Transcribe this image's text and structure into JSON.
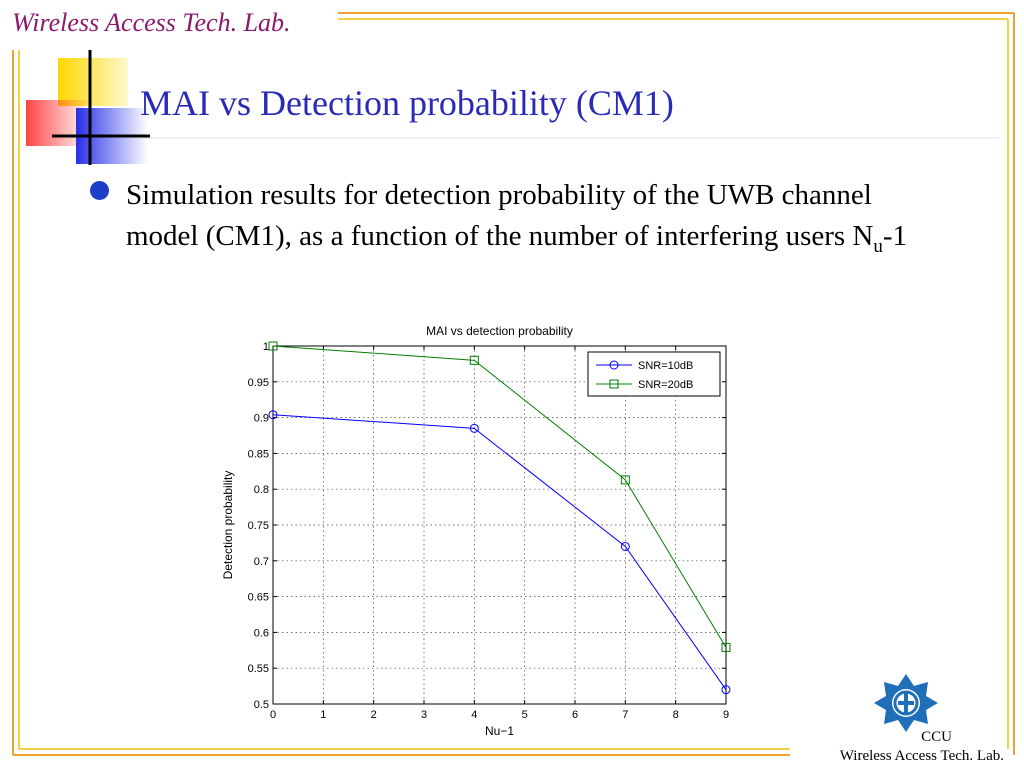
{
  "slide": {
    "header": "Wireless Access Tech. Lab.",
    "title": "MAI vs Detection probability (CM1)",
    "bullet_text": "Simulation results for detection probability of the UWB channel model (CM1), as a function of the number of interfering users N",
    "bullet_subscript": "u",
    "bullet_suffix": "-1",
    "footer_line1": "CCU",
    "footer_line2": "Wireless Access Tech. Lab.",
    "colors": {
      "header": "#8a1a6e",
      "title": "#2a2ab8",
      "frame_orange": "#f0a030",
      "frame_yellow": "#f5d040",
      "logo_blue": "#1e6fb8"
    }
  },
  "chart_data": {
    "type": "line",
    "title": "MAI vs detection probability",
    "xlabel": "Nu−1",
    "ylabel": "Detection probability",
    "xlim": [
      0,
      9
    ],
    "ylim": [
      0.5,
      1
    ],
    "xticks": [
      "0",
      "1",
      "2",
      "3",
      "4",
      "5",
      "6",
      "7",
      "8",
      "9"
    ],
    "yticks": [
      "0.5",
      "0.55",
      "0.6",
      "0.65",
      "0.7",
      "0.75",
      "0.8",
      "0.85",
      "0.9",
      "0.95",
      "1"
    ],
    "grid": true,
    "legend_position": "top-right",
    "series": [
      {
        "name": "SNR=10dB",
        "color": "#0000ff",
        "marker": "circle",
        "x": [
          0,
          4,
          7,
          9
        ],
        "y": [
          0.904,
          0.885,
          0.72,
          0.52
        ]
      },
      {
        "name": "SNR=20dB",
        "color": "#008000",
        "marker": "square",
        "x": [
          0,
          4,
          7,
          9
        ],
        "y": [
          1.0,
          0.98,
          0.813,
          0.579
        ]
      }
    ]
  }
}
